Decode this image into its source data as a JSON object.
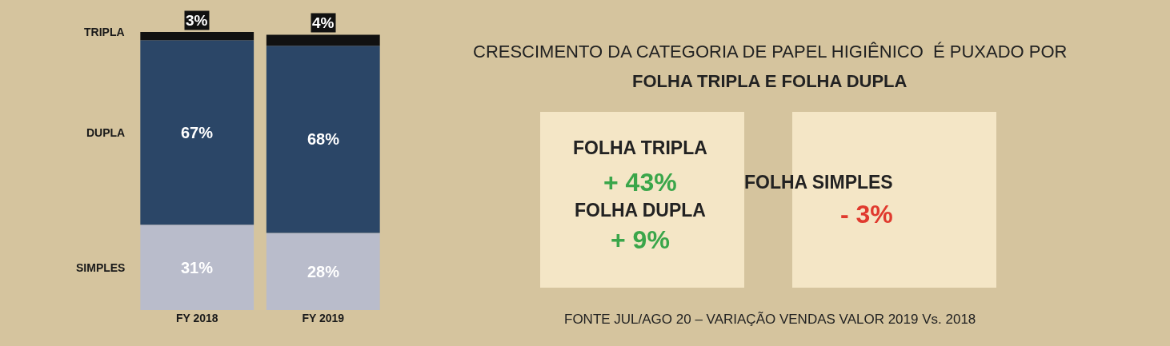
{
  "chart_data": {
    "type": "bar",
    "stacked": true,
    "title": "CRESCIMENTO DA CATEGORIA DE PAPEL HIGIÊNICO  É PUXADO POR\nFOLHA TRIPLA E FOLHA DUPLA",
    "categories": [
      "FY 2018",
      "FY 2019"
    ],
    "series": [
      {
        "name": "SIMPLES",
        "color": "#b9bccb",
        "values": [
          31,
          28
        ],
        "value_labels": [
          "31%",
          "28%"
        ]
      },
      {
        "name": "DUPLA",
        "color": "#2b4667",
        "values": [
          67,
          68
        ],
        "value_labels": [
          "67%",
          "68%"
        ]
      },
      {
        "name": "TRIPLA",
        "color": "#111111",
        "values": [
          3,
          4
        ],
        "value_labels": [
          "3%",
          "4%"
        ]
      }
    ],
    "annotations": [
      "FOLHA TRIPLA",
      "+ 43%",
      "FOLHA DUPLA",
      "+ 9%",
      "FOLHA SIMPLES",
      "- 3%",
      "FONTE JUL/AGO 20 – VARIAÇÃO VENDAS VALOR 2019 Vs. 2018"
    ],
    "legend": false,
    "grid": false
  }
}
